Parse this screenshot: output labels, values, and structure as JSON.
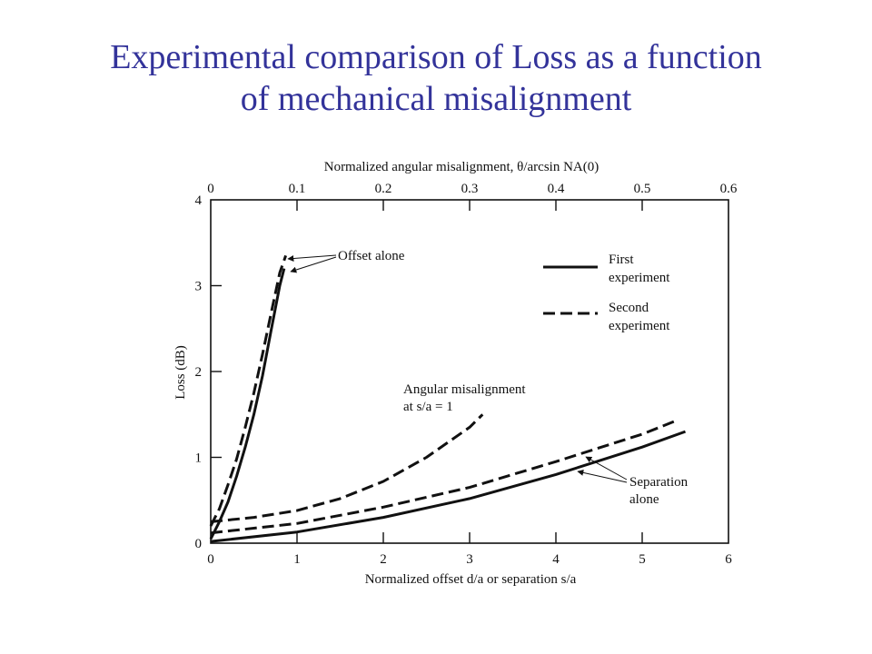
{
  "slide": {
    "title_line1": "Experimental comparison of Loss as a function",
    "title_line2": "of mechanical misalignment"
  },
  "chart_data": {
    "type": "line",
    "title": "",
    "xlabel": "Normalized offset d/a or separation s/a",
    "x2label": "Normalized angular misalignment, θ/arcsin NA(0)",
    "ylabel": "Loss (dB)",
    "xlim": [
      0,
      6
    ],
    "x2lim": [
      0,
      0.6
    ],
    "ylim": [
      0,
      4
    ],
    "x_ticks": [
      "0",
      "1",
      "2",
      "3",
      "4",
      "5",
      "6"
    ],
    "x2_ticks": [
      "0",
      "0.1",
      "0.2",
      "0.3",
      "0.4",
      "0.5",
      "0.6"
    ],
    "y_ticks": [
      "0",
      "1",
      "2",
      "3",
      "4"
    ],
    "grid": false,
    "legend_position": "top-right",
    "legend": [
      {
        "label_line1": "First",
        "label_line2": "experiment",
        "style": "solid"
      },
      {
        "label_line1": "Second",
        "label_line2": "experiment",
        "style": "dashed"
      }
    ],
    "series": [
      {
        "group": "Offset alone",
        "style": "solid",
        "points": [
          [
            0,
            0.05
          ],
          [
            0.1,
            0.25
          ],
          [
            0.2,
            0.48
          ],
          [
            0.3,
            0.78
          ],
          [
            0.4,
            1.12
          ],
          [
            0.5,
            1.5
          ],
          [
            0.6,
            1.95
          ],
          [
            0.7,
            2.48
          ],
          [
            0.8,
            3.0
          ],
          [
            0.85,
            3.2
          ]
        ]
      },
      {
        "group": "Offset alone",
        "style": "dashed",
        "points": [
          [
            0,
            0.2
          ],
          [
            0.1,
            0.4
          ],
          [
            0.2,
            0.68
          ],
          [
            0.3,
            0.98
          ],
          [
            0.4,
            1.35
          ],
          [
            0.5,
            1.75
          ],
          [
            0.6,
            2.2
          ],
          [
            0.7,
            2.68
          ],
          [
            0.8,
            3.15
          ],
          [
            0.87,
            3.35
          ]
        ]
      },
      {
        "group": "Angular misalignment at s/a = 1",
        "style": "dashed",
        "points": [
          [
            0,
            0.25
          ],
          [
            0.5,
            0.3
          ],
          [
            1,
            0.38
          ],
          [
            1.5,
            0.52
          ],
          [
            2,
            0.72
          ],
          [
            2.5,
            1.0
          ],
          [
            3,
            1.35
          ],
          [
            3.15,
            1.5
          ]
        ]
      },
      {
        "group": "Separation alone",
        "style": "solid",
        "points": [
          [
            0,
            0.02
          ],
          [
            1,
            0.13
          ],
          [
            2,
            0.3
          ],
          [
            3,
            0.52
          ],
          [
            4,
            0.8
          ],
          [
            5,
            1.12
          ],
          [
            5.5,
            1.3
          ]
        ]
      },
      {
        "group": "Separation alone",
        "style": "dashed",
        "points": [
          [
            0,
            0.12
          ],
          [
            1,
            0.23
          ],
          [
            2,
            0.42
          ],
          [
            3,
            0.65
          ],
          [
            4,
            0.95
          ],
          [
            5,
            1.27
          ],
          [
            5.4,
            1.43
          ]
        ]
      }
    ],
    "annotations": [
      {
        "text": "Offset alone",
        "target_points": [
          [
            0.9,
            3.3
          ],
          [
            0.9,
            3.18
          ]
        ]
      },
      {
        "text_line1": "Angular misalignment",
        "text_line2": "at s/a = 1"
      },
      {
        "text_line1": "Separation",
        "text_line2": "alone",
        "target_points": [
          [
            4.4,
            1.02
          ],
          [
            4.3,
            0.84
          ]
        ]
      }
    ]
  }
}
